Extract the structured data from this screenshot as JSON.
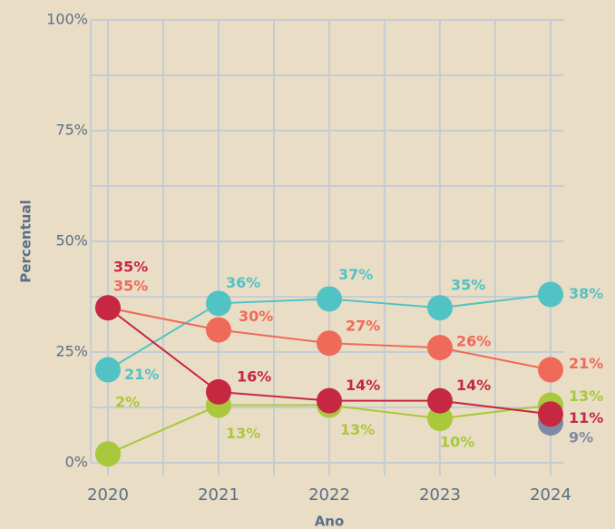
{
  "chart_data": {
    "type": "line",
    "x_label": "Ano",
    "y_label": "Percentual",
    "categories": [
      "2020",
      "2021",
      "2022",
      "2023",
      "2024"
    ],
    "ylim": [
      0,
      100
    ],
    "yticks": [
      {
        "value": 0,
        "label": "0%"
      },
      {
        "value": 25,
        "label": "25%"
      },
      {
        "value": 50,
        "label": "50%"
      },
      {
        "value": 75,
        "label": "75%"
      },
      {
        "value": 100,
        "label": "100%"
      }
    ],
    "grid": true,
    "series": [
      {
        "color": "#7d8aa6",
        "values": [
          null,
          null,
          null,
          null,
          9
        ],
        "value_labels": [
          null,
          null,
          null,
          null,
          "9%"
        ]
      },
      {
        "color": "#a9c83b",
        "values": [
          2,
          13,
          13,
          10,
          13
        ],
        "value_labels": [
          "2%",
          "13%",
          "13%",
          "10%",
          "13%"
        ]
      },
      {
        "color": "#52c3c4",
        "values": [
          21,
          36,
          37,
          35,
          38
        ],
        "value_labels": [
          "21%",
          "36%",
          "37%",
          "35%",
          "38%"
        ]
      },
      {
        "color": "#ef6a58",
        "values": [
          35,
          30,
          27,
          26,
          21
        ],
        "value_labels": [
          "35%",
          "30%",
          "27%",
          "26%",
          "21%"
        ]
      },
      {
        "color": "#c62841",
        "values": [
          35,
          16,
          14,
          14,
          11
        ],
        "value_labels": [
          "35%",
          "16%",
          "14%",
          "14%",
          "11%"
        ]
      }
    ]
  }
}
